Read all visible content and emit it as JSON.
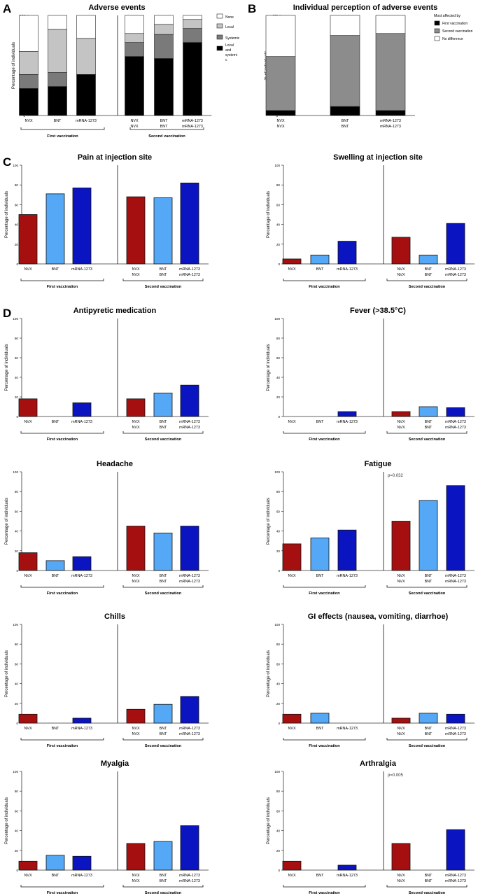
{
  "figure": {
    "panel_letters": [
      "A",
      "B",
      "C",
      "D"
    ]
  },
  "colors": {
    "nvx": "#a50f0f",
    "bnt": "#55a8f5",
    "mrna": "#0a14c0",
    "stack": [
      "#000000",
      "#7a7a7a",
      "#c4c4c4",
      "#ffffff"
    ],
    "perception": [
      "#000000",
      "#8c8c8c",
      "#ffffff"
    ],
    "axis": "#333333"
  },
  "chart_data": [
    {
      "id": "A",
      "type": "bar",
      "stacked": true,
      "title": "Adverse events",
      "ylabel": "Percentage of individuals",
      "ylim": [
        0,
        100
      ],
      "yticks": [
        0,
        20,
        40,
        60,
        80,
        100
      ],
      "categories": [
        [
          "NVX"
        ],
        [
          "BNT"
        ],
        [
          "mRNA-1273"
        ],
        [
          "NVX",
          "NVX"
        ],
        [
          "BNT",
          "BNT"
        ],
        [
          "mRNA-1273",
          "mRNA-1273"
        ]
      ],
      "group_labels": [
        "First vaccination",
        "Second vaccination"
      ],
      "series": [
        {
          "name": "Local and systemic",
          "values": [
            27,
            29,
            41,
            59,
            57,
            73
          ]
        },
        {
          "name": "Systemic",
          "values": [
            14,
            14,
            0,
            14,
            24,
            14
          ]
        },
        {
          "name": "Local",
          "values": [
            23,
            43,
            36,
            9,
            10,
            9
          ]
        },
        {
          "name": "None",
          "values": [
            36,
            14,
            23,
            18,
            9,
            4
          ]
        }
      ],
      "legend": [
        "None",
        "Local",
        "Systemic",
        "Local and systemi c"
      ],
      "legend_position": "right"
    },
    {
      "id": "B",
      "type": "bar",
      "stacked": true,
      "title": "Individual perception of adverse events",
      "ylabel": "% of individuals",
      "ylim": [
        0,
        100
      ],
      "yticks": [
        0,
        20,
        40,
        60,
        80,
        100
      ],
      "categories": [
        [
          "NVX",
          "NVX"
        ],
        [
          "BNT",
          "BNT"
        ],
        [
          "mRNA-1273",
          "mRNA-1273"
        ]
      ],
      "series": [
        {
          "name": "First vaccination",
          "values": [
            5,
            9,
            5
          ]
        },
        {
          "name": "Second vaccination",
          "values": [
            54,
            71,
            77
          ]
        },
        {
          "name": "No difference",
          "values": [
            41,
            20,
            18
          ]
        }
      ],
      "legend_title": "Most affected by",
      "legend": [
        "First vaccination",
        "Second vaccination",
        "No difference"
      ],
      "legend_position": "right"
    },
    {
      "id": "C1",
      "type": "bar",
      "title": "Pain at injection site",
      "ylabel": "Percentage of individuals",
      "ylim": [
        0,
        100
      ],
      "yticks": [
        0,
        20,
        40,
        60,
        80,
        100
      ],
      "categories": [
        [
          "NVX"
        ],
        [
          "BNT"
        ],
        [
          "mRNA-1273"
        ],
        [
          "NVX",
          "NVX"
        ],
        [
          "BNT",
          "BNT"
        ],
        [
          "mRNA-1273",
          "mRNA-1273"
        ]
      ],
      "group_labels": [
        "First vaccination",
        "Second vaccination"
      ],
      "values": [
        50,
        71,
        77,
        68,
        67,
        82
      ]
    },
    {
      "id": "C2",
      "type": "bar",
      "title": "Swelling at injection site",
      "ylabel": "Percentage of individuals",
      "ylim": [
        0,
        100
      ],
      "yticks": [
        0,
        20,
        40,
        60,
        80,
        100
      ],
      "categories": [
        [
          "NVX"
        ],
        [
          "BNT"
        ],
        [
          "mRNA-1273"
        ],
        [
          "NVX",
          "NVX"
        ],
        [
          "BNT",
          "BNT"
        ],
        [
          "mRNA-1273",
          "mRNA-1273"
        ]
      ],
      "group_labels": [
        "First vaccination",
        "Second vaccination"
      ],
      "values": [
        5,
        9,
        23,
        27,
        9,
        41
      ]
    },
    {
      "id": "D1",
      "type": "bar",
      "title": "Antipyretic medication",
      "ylabel": "Percentage of individuals",
      "ylim": [
        0,
        100
      ],
      "yticks": [
        0,
        20,
        40,
        60,
        80,
        100
      ],
      "categories": [
        [
          "NVX"
        ],
        [
          "BNT"
        ],
        [
          "mRNA-1273"
        ],
        [
          "NVX",
          "NVX"
        ],
        [
          "BNT",
          "BNT"
        ],
        [
          "mRNA-1273",
          "mRNA-1273"
        ]
      ],
      "group_labels": [
        "First vaccination",
        "Second vaccination"
      ],
      "values": [
        18,
        0,
        14,
        18,
        24,
        32
      ]
    },
    {
      "id": "D2",
      "type": "bar",
      "title": "Fever (>38.5°C)",
      "ylabel": "Percentage of individuals",
      "ylim": [
        0,
        100
      ],
      "yticks": [
        0,
        20,
        40,
        60,
        80,
        100
      ],
      "categories": [
        [
          "NVX"
        ],
        [
          "BNT"
        ],
        [
          "mRNA-1273"
        ],
        [
          "NVX",
          "NVX"
        ],
        [
          "BNT",
          "BNT"
        ],
        [
          "mRNA-1273",
          "mRNA-1273"
        ]
      ],
      "group_labels": [
        "First vaccination",
        "Second vaccination"
      ],
      "values": [
        0,
        0,
        5,
        5,
        10,
        9
      ]
    },
    {
      "id": "D3",
      "type": "bar",
      "title": "Headache",
      "ylabel": "Percentage of individuals",
      "ylim": [
        0,
        100
      ],
      "yticks": [
        0,
        20,
        40,
        60,
        80,
        100
      ],
      "categories": [
        [
          "NVX"
        ],
        [
          "BNT"
        ],
        [
          "mRNA-1273"
        ],
        [
          "NVX",
          "NVX"
        ],
        [
          "BNT",
          "BNT"
        ],
        [
          "mRNA-1273",
          "mRNA-1273"
        ]
      ],
      "group_labels": [
        "First vaccination",
        "Second vaccination"
      ],
      "values": [
        18,
        10,
        14,
        45,
        38,
        45
      ]
    },
    {
      "id": "D4",
      "type": "bar",
      "title": "Fatigue",
      "ylabel": "Percentage of individuals",
      "ylim": [
        0,
        100
      ],
      "yticks": [
        0,
        20,
        40,
        60,
        80,
        100
      ],
      "categories": [
        [
          "NVX"
        ],
        [
          "BNT"
        ],
        [
          "mRNA-1273"
        ],
        [
          "NVX",
          "NVX"
        ],
        [
          "BNT",
          "BNT"
        ],
        [
          "mRNA-1273",
          "mRNA-1273"
        ]
      ],
      "group_labels": [
        "First vaccination",
        "Second vaccination"
      ],
      "values": [
        27,
        33,
        41,
        50,
        71,
        86
      ],
      "annotation": "p=0.032"
    },
    {
      "id": "D5",
      "type": "bar",
      "title": "Chills",
      "ylabel": "Percentage of individuals",
      "ylim": [
        0,
        100
      ],
      "yticks": [
        0,
        20,
        40,
        60,
        80,
        100
      ],
      "categories": [
        [
          "NVX"
        ],
        [
          "BNT"
        ],
        [
          "mRNA-1273"
        ],
        [
          "NVX",
          "NVX"
        ],
        [
          "BNT",
          "BNT"
        ],
        [
          "mRNA-1273",
          "mRNA-1273"
        ]
      ],
      "group_labels": [
        "First vaccination",
        "Second vaccination"
      ],
      "values": [
        9,
        0,
        5,
        14,
        19,
        27
      ]
    },
    {
      "id": "D6",
      "type": "bar",
      "title": "GI effects (nausea, vomiting, diarrhoe)",
      "ylabel": "Percentage of individuals",
      "ylim": [
        0,
        100
      ],
      "yticks": [
        0,
        20,
        40,
        60,
        80,
        100
      ],
      "categories": [
        [
          "NVX"
        ],
        [
          "BNT"
        ],
        [
          "mRNA-1273"
        ],
        [
          "NVX",
          "NVX"
        ],
        [
          "BNT",
          "BNT"
        ],
        [
          "mRNA-1273",
          "mRNA-1273"
        ]
      ],
      "group_labels": [
        "First vaccination",
        "Second vaccination"
      ],
      "values": [
        9,
        10,
        0,
        5,
        10,
        9
      ]
    },
    {
      "id": "D7",
      "type": "bar",
      "title": "Myalgia",
      "ylabel": "Percentage of individuals",
      "ylim": [
        0,
        100
      ],
      "yticks": [
        0,
        20,
        40,
        60,
        80,
        100
      ],
      "categories": [
        [
          "NVX"
        ],
        [
          "BNT"
        ],
        [
          "mRNA-1273"
        ],
        [
          "NVX",
          "NVX"
        ],
        [
          "BNT",
          "BNT"
        ],
        [
          "mRNA-1273",
          "mRNA-1273"
        ]
      ],
      "group_labels": [
        "First vaccination",
        "Second vaccination"
      ],
      "values": [
        9,
        15,
        14,
        27,
        29,
        45
      ]
    },
    {
      "id": "D8",
      "type": "bar",
      "title": "Arthralgia",
      "ylabel": "Percentage of individuals",
      "ylim": [
        0,
        100
      ],
      "yticks": [
        0,
        20,
        40,
        60,
        80,
        100
      ],
      "categories": [
        [
          "NVX"
        ],
        [
          "BNT"
        ],
        [
          "mRNA-1273"
        ],
        [
          "NVX",
          "NVX"
        ],
        [
          "BNT",
          "BNT"
        ],
        [
          "mRNA-1273",
          "mRNA-1273"
        ]
      ],
      "group_labels": [
        "First vaccination",
        "Second vaccination"
      ],
      "values": [
        9,
        0,
        5,
        27,
        0,
        41
      ],
      "annotation": "p=0.005"
    }
  ]
}
